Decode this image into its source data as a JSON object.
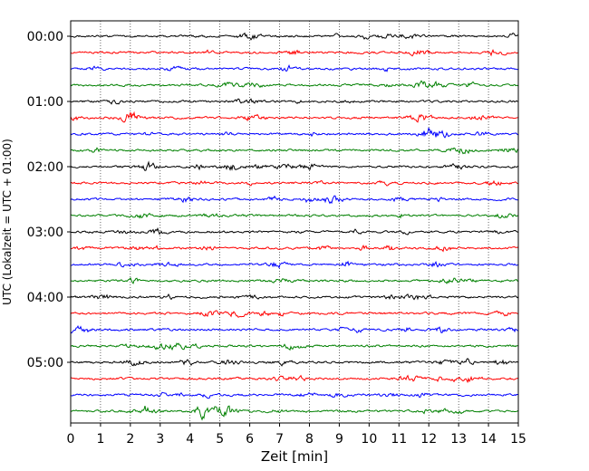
{
  "chart_data": {
    "type": "line",
    "title": "",
    "xlabel": "Zeit  [min]",
    "ylabel": "UTC (Lokalzeit = UTC + 01:00)",
    "xlim": [
      0,
      15
    ],
    "x_ticks": [
      "0",
      "1",
      "2",
      "3",
      "4",
      "5",
      "6",
      "7",
      "8",
      "9",
      "10",
      "11",
      "12",
      "13",
      "14",
      "15"
    ],
    "row_labels": [
      "00:00",
      "01:00",
      "02:00",
      "03:00",
      "04:00",
      "05:00"
    ],
    "trace_colors": [
      "#000000",
      "#ff0000",
      "#0000ff",
      "#008000"
    ],
    "trace_count": 24,
    "grid": "vertical dotted lines at each minute"
  }
}
